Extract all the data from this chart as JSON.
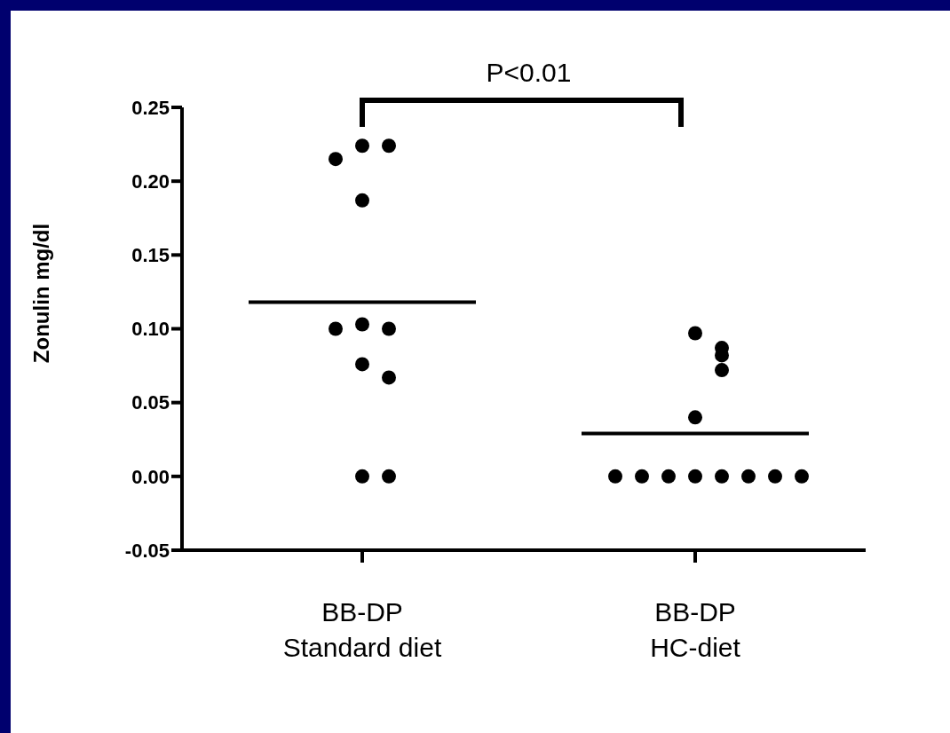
{
  "chart_data": {
    "type": "scatter",
    "ylabel": "Zonulin mg/dl",
    "categories": [
      "BB-DP\nStandard diet",
      "BB-DP\nHC-diet"
    ],
    "series": [
      {
        "color": "#000000",
        "x": [
          "BB-DP\nStandard diet",
          "BB-DP\nStandard diet",
          "BB-DP\nStandard diet",
          "BB-DP\nStandard diet",
          "BB-DP\nStandard diet",
          "BB-DP\nStandard diet",
          "BB-DP\nStandard diet",
          "BB-DP\nStandard diet",
          "BB-DP\nStandard diet",
          "BB-DP\nStandard diet",
          "BB-DP\nStandard diet"
        ],
        "values": [
          0.224,
          0.224,
          0.215,
          0.187,
          0.103,
          0.1,
          0.1,
          0.076,
          0.067,
          0,
          0
        ]
      },
      {
        "color": "#000000",
        "x": [
          "BB-DP\nHC-diet",
          "BB-DP\nHC-diet",
          "BB-DP\nHC-diet",
          "BB-DP\nHC-diet",
          "BB-DP\nHC-diet",
          "BB-DP\nHC-diet",
          "BB-DP\nHC-diet",
          "BB-DP\nHC-diet",
          "BB-DP\nHC-diet",
          "BB-DP\nHC-diet",
          "BB-DP\nHC-diet",
          "BB-DP\nHC-diet",
          "BB-DP\nHC-diet"
        ],
        "values": [
          0.097,
          0.087,
          0.082,
          0.072,
          0.04,
          0,
          0,
          0,
          0,
          0,
          0,
          0,
          0
        ]
      }
    ],
    "ref_lines": [
      {
        "axis": "y",
        "value": 0.118,
        "label": null,
        "color": "#000000"
      },
      {
        "axis": "y",
        "value": 0.029,
        "label": null,
        "color": "#000000"
      }
    ],
    "annotations": [
      "P<0.01"
    ],
    "marker": "circle",
    "grid": false,
    "ylim": [
      -0.05,
      0.25
    ],
    "yticks": [
      {
        "value": -0.05,
        "label": "-0.05"
      },
      {
        "value": 0,
        "label": "0.00"
      },
      {
        "value": 0.05,
        "label": "0.05"
      },
      {
        "value": 0.1,
        "label": "0.10"
      },
      {
        "value": 0.15,
        "label": "0.15"
      },
      {
        "value": 0.2,
        "label": "0.20"
      },
      {
        "value": 0.25,
        "label": "0.25"
      }
    ]
  }
}
